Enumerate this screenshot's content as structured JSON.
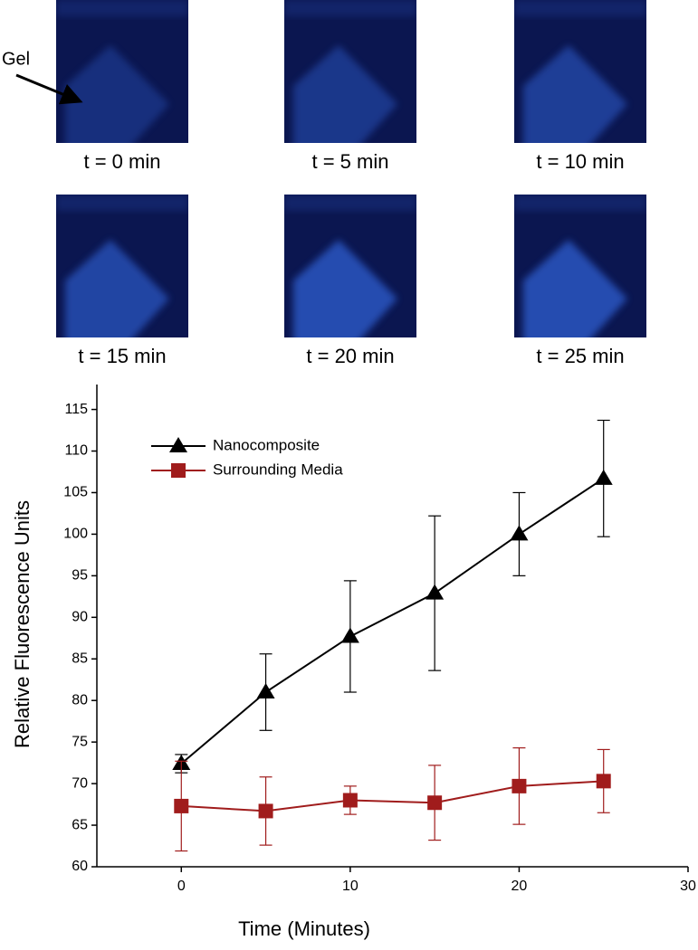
{
  "panel": {
    "annotation": "Gel",
    "images": [
      {
        "label": "t = 0 min"
      },
      {
        "label": "t = 5 min"
      },
      {
        "label": "t = 10 min"
      },
      {
        "label": "t = 15 min"
      },
      {
        "label": "t = 20 min"
      },
      {
        "label": "t = 25 min"
      }
    ]
  },
  "chart_data": {
    "type": "line",
    "x_label": "Time (Minutes)",
    "y_label": "Relative Fluorescence Units",
    "x": [
      0,
      5,
      10,
      15,
      20,
      25
    ],
    "series": [
      {
        "name": "Nanocomposite",
        "color": "#000000",
        "marker": "triangle",
        "values": [
          72.4,
          81,
          87.7,
          92.9,
          100,
          106.7
        ],
        "errors": [
          1.1,
          4.6,
          6.7,
          9.3,
          5,
          7
        ]
      },
      {
        "name": "Surrounding Media",
        "color": "#a01c1c",
        "marker": "square",
        "values": [
          67.3,
          66.7,
          68,
          67.7,
          69.7,
          70.3
        ],
        "errors": [
          5.4,
          4.1,
          1.7,
          4.5,
          4.6,
          3.8
        ]
      }
    ],
    "xlim": [
      -5,
      30
    ],
    "xticks": [
      0,
      10,
      20,
      30
    ],
    "ylim": [
      60,
      118
    ],
    "yticks": [
      60,
      65,
      70,
      75,
      80,
      85,
      90,
      95,
      100,
      105,
      110,
      115
    ],
    "legend": "upper-left",
    "grid": false
  }
}
